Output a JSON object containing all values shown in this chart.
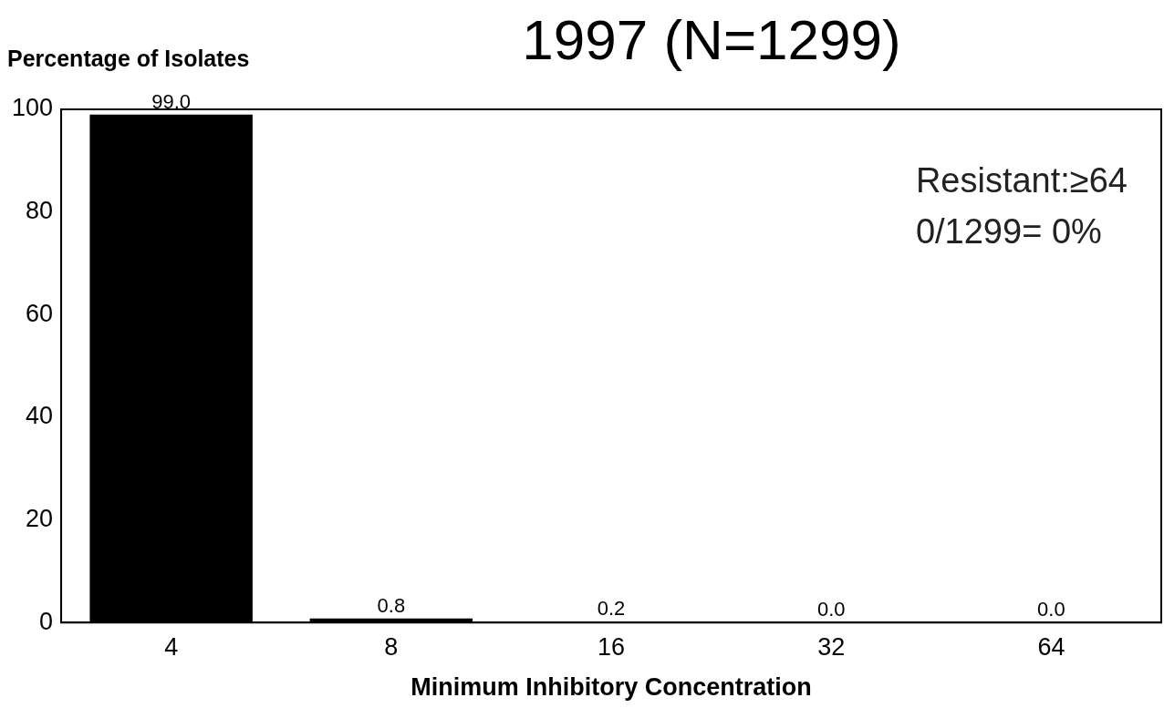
{
  "chart_data": {
    "type": "bar",
    "title": "1997 (N=1299)",
    "xlabel": "Minimum Inhibitory Concentration",
    "ylabel": "Percentage of Isolates",
    "categories": [
      "4",
      "8",
      "16",
      "32",
      "64"
    ],
    "values": [
      99.0,
      0.8,
      0.2,
      0.0,
      0.0
    ],
    "value_labels": [
      "99.0",
      "0.8",
      "0.2",
      "0.0",
      "0.0"
    ],
    "color": "#000000",
    "ylim": [
      0,
      100
    ],
    "yticks": [
      0,
      20,
      40,
      60,
      80,
      100
    ],
    "grid": false,
    "legend": false,
    "annotations": [
      "Resistant:≥64",
      "0/1299= 0%"
    ]
  }
}
